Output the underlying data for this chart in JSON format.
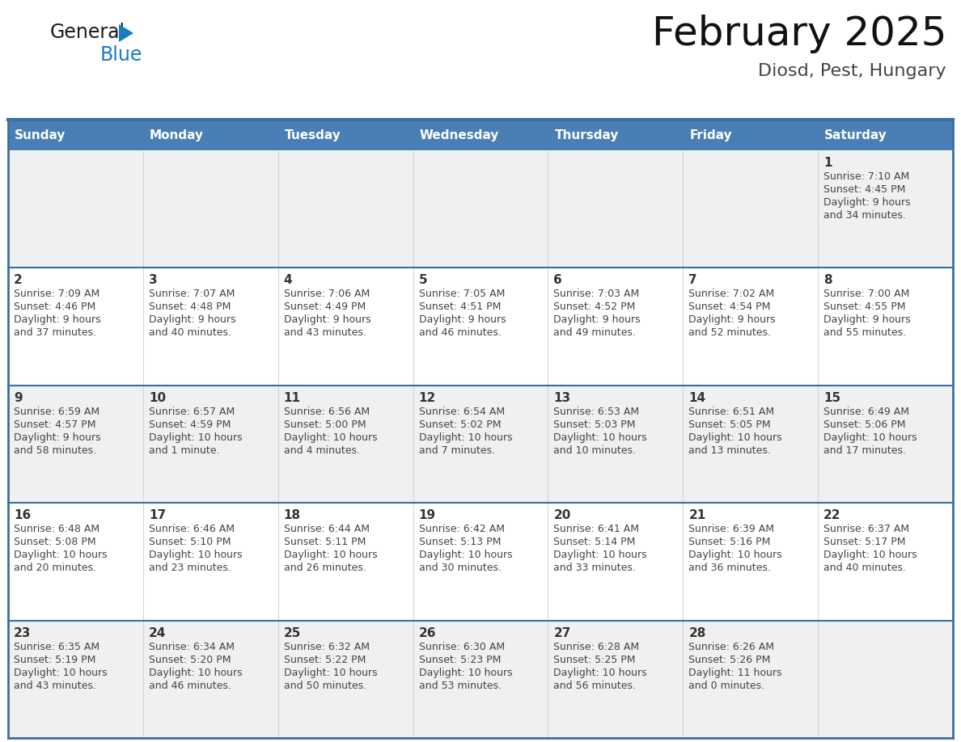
{
  "title": "February 2025",
  "subtitle": "Diosd, Pest, Hungary",
  "days_of_week": [
    "Sunday",
    "Monday",
    "Tuesday",
    "Wednesday",
    "Thursday",
    "Friday",
    "Saturday"
  ],
  "header_bg": "#4a7fb5",
  "header_text": "#ffffff",
  "cell_bg_odd": "#f0f0f0",
  "cell_bg_even": "#ffffff",
  "border_color": "#3a6f9f",
  "text_color": "#444444",
  "day_num_color": "#333333",
  "calendar_data": [
    [
      null,
      null,
      null,
      null,
      null,
      null,
      {
        "day": "1",
        "sunrise": "7:10 AM",
        "sunset": "4:45 PM",
        "daylight_hrs": "9 hours",
        "daylight_min": "and 34 minutes."
      }
    ],
    [
      {
        "day": "2",
        "sunrise": "7:09 AM",
        "sunset": "4:46 PM",
        "daylight_hrs": "9 hours",
        "daylight_min": "and 37 minutes."
      },
      {
        "day": "3",
        "sunrise": "7:07 AM",
        "sunset": "4:48 PM",
        "daylight_hrs": "9 hours",
        "daylight_min": "and 40 minutes."
      },
      {
        "day": "4",
        "sunrise": "7:06 AM",
        "sunset": "4:49 PM",
        "daylight_hrs": "9 hours",
        "daylight_min": "and 43 minutes."
      },
      {
        "day": "5",
        "sunrise": "7:05 AM",
        "sunset": "4:51 PM",
        "daylight_hrs": "9 hours",
        "daylight_min": "and 46 minutes."
      },
      {
        "day": "6",
        "sunrise": "7:03 AM",
        "sunset": "4:52 PM",
        "daylight_hrs": "9 hours",
        "daylight_min": "and 49 minutes."
      },
      {
        "day": "7",
        "sunrise": "7:02 AM",
        "sunset": "4:54 PM",
        "daylight_hrs": "9 hours",
        "daylight_min": "and 52 minutes."
      },
      {
        "day": "8",
        "sunrise": "7:00 AM",
        "sunset": "4:55 PM",
        "daylight_hrs": "9 hours",
        "daylight_min": "and 55 minutes."
      }
    ],
    [
      {
        "day": "9",
        "sunrise": "6:59 AM",
        "sunset": "4:57 PM",
        "daylight_hrs": "9 hours",
        "daylight_min": "and 58 minutes."
      },
      {
        "day": "10",
        "sunrise": "6:57 AM",
        "sunset": "4:59 PM",
        "daylight_hrs": "10 hours",
        "daylight_min": "and 1 minute."
      },
      {
        "day": "11",
        "sunrise": "6:56 AM",
        "sunset": "5:00 PM",
        "daylight_hrs": "10 hours",
        "daylight_min": "and 4 minutes."
      },
      {
        "day": "12",
        "sunrise": "6:54 AM",
        "sunset": "5:02 PM",
        "daylight_hrs": "10 hours",
        "daylight_min": "and 7 minutes."
      },
      {
        "day": "13",
        "sunrise": "6:53 AM",
        "sunset": "5:03 PM",
        "daylight_hrs": "10 hours",
        "daylight_min": "and 10 minutes."
      },
      {
        "day": "14",
        "sunrise": "6:51 AM",
        "sunset": "5:05 PM",
        "daylight_hrs": "10 hours",
        "daylight_min": "and 13 minutes."
      },
      {
        "day": "15",
        "sunrise": "6:49 AM",
        "sunset": "5:06 PM",
        "daylight_hrs": "10 hours",
        "daylight_min": "and 17 minutes."
      }
    ],
    [
      {
        "day": "16",
        "sunrise": "6:48 AM",
        "sunset": "5:08 PM",
        "daylight_hrs": "10 hours",
        "daylight_min": "and 20 minutes."
      },
      {
        "day": "17",
        "sunrise": "6:46 AM",
        "sunset": "5:10 PM",
        "daylight_hrs": "10 hours",
        "daylight_min": "and 23 minutes."
      },
      {
        "day": "18",
        "sunrise": "6:44 AM",
        "sunset": "5:11 PM",
        "daylight_hrs": "10 hours",
        "daylight_min": "and 26 minutes."
      },
      {
        "day": "19",
        "sunrise": "6:42 AM",
        "sunset": "5:13 PM",
        "daylight_hrs": "10 hours",
        "daylight_min": "and 30 minutes."
      },
      {
        "day": "20",
        "sunrise": "6:41 AM",
        "sunset": "5:14 PM",
        "daylight_hrs": "10 hours",
        "daylight_min": "and 33 minutes."
      },
      {
        "day": "21",
        "sunrise": "6:39 AM",
        "sunset": "5:16 PM",
        "daylight_hrs": "10 hours",
        "daylight_min": "and 36 minutes."
      },
      {
        "day": "22",
        "sunrise": "6:37 AM",
        "sunset": "5:17 PM",
        "daylight_hrs": "10 hours",
        "daylight_min": "and 40 minutes."
      }
    ],
    [
      {
        "day": "23",
        "sunrise": "6:35 AM",
        "sunset": "5:19 PM",
        "daylight_hrs": "10 hours",
        "daylight_min": "and 43 minutes."
      },
      {
        "day": "24",
        "sunrise": "6:34 AM",
        "sunset": "5:20 PM",
        "daylight_hrs": "10 hours",
        "daylight_min": "and 46 minutes."
      },
      {
        "day": "25",
        "sunrise": "6:32 AM",
        "sunset": "5:22 PM",
        "daylight_hrs": "10 hours",
        "daylight_min": "and 50 minutes."
      },
      {
        "day": "26",
        "sunrise": "6:30 AM",
        "sunset": "5:23 PM",
        "daylight_hrs": "10 hours",
        "daylight_min": "and 53 minutes."
      },
      {
        "day": "27",
        "sunrise": "6:28 AM",
        "sunset": "5:25 PM",
        "daylight_hrs": "10 hours",
        "daylight_min": "and 56 minutes."
      },
      {
        "day": "28",
        "sunrise": "6:26 AM",
        "sunset": "5:26 PM",
        "daylight_hrs": "11 hours",
        "daylight_min": "and 0 minutes."
      },
      null
    ]
  ],
  "logo_text1": "General",
  "logo_text2": "Blue",
  "logo_color1": "#1a1a1a",
  "logo_color2": "#1a7bbf",
  "logo_triangle_color": "#1a7bbf",
  "title_fontsize": 36,
  "subtitle_fontsize": 16,
  "header_fontsize": 11,
  "day_num_fontsize": 11,
  "cell_text_fontsize": 9
}
